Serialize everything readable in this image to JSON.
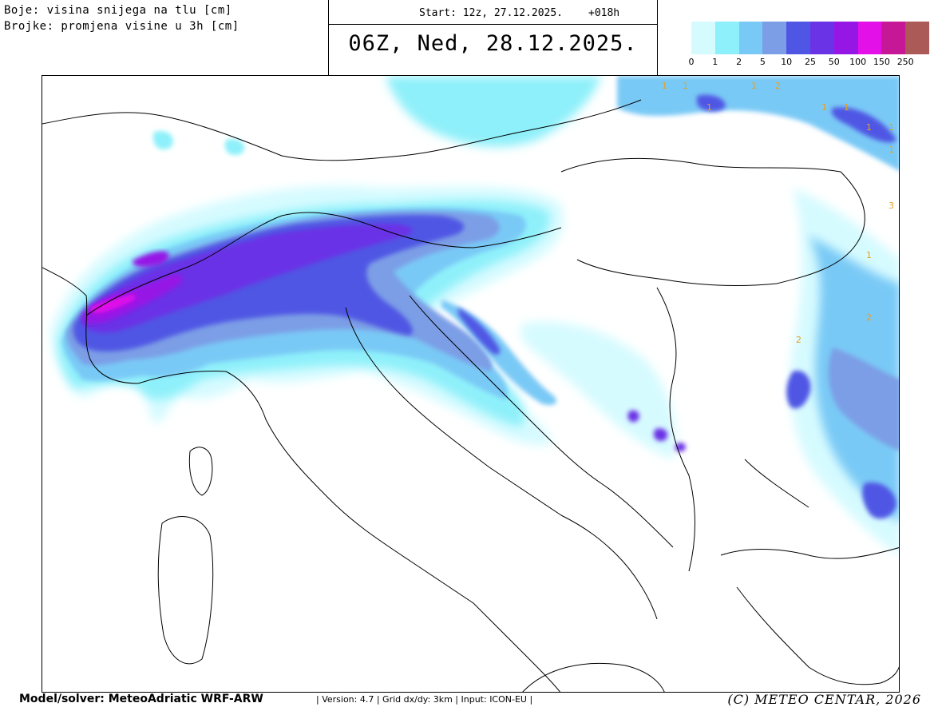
{
  "description": {
    "line1": "Boje: visina snijega na tlu [cm]",
    "line2": "Brojke: promjena visine u 3h [cm]"
  },
  "header": {
    "start_label": "Start: 12z, 27.12.2025.",
    "lead": "+018h",
    "valid_time": "06Z, Ned, 28.12.2025."
  },
  "legend": {
    "unit": "cm",
    "bins": [
      {
        "label": "0",
        "color": "#d6fbff"
      },
      {
        "label": "1",
        "color": "#8ef0fa"
      },
      {
        "label": "2",
        "color": "#79c9f6"
      },
      {
        "label": "5",
        "color": "#7b9ee6"
      },
      {
        "label": "10",
        "color": "#4f56e4"
      },
      {
        "label": "25",
        "color": "#6a33e6"
      },
      {
        "label": "50",
        "color": "#9616e6"
      },
      {
        "label": "100",
        "color": "#e310e8"
      },
      {
        "label": "150",
        "color": "#c61896"
      },
      {
        "label": "250",
        "color": "#ab5a57"
      }
    ],
    "last_color": "#ab5a57"
  },
  "map": {
    "region": "Alps, Italy, Adriatic, Balkans",
    "change_labels": [
      "1",
      "1",
      "1",
      "2",
      "1",
      "1",
      "1",
      "1",
      "1",
      "1",
      "2",
      "2",
      "1",
      "3"
    ],
    "change_label_color": "#e8a020"
  },
  "footer": {
    "model": "Model/solver: MeteoAdriatic WRF-ARW",
    "meta": "| Version: 4.7 | Grid dx/dy: 3km | Input: ICON-EU |",
    "copyright": "(C) METEO CENTAR, 2026"
  }
}
